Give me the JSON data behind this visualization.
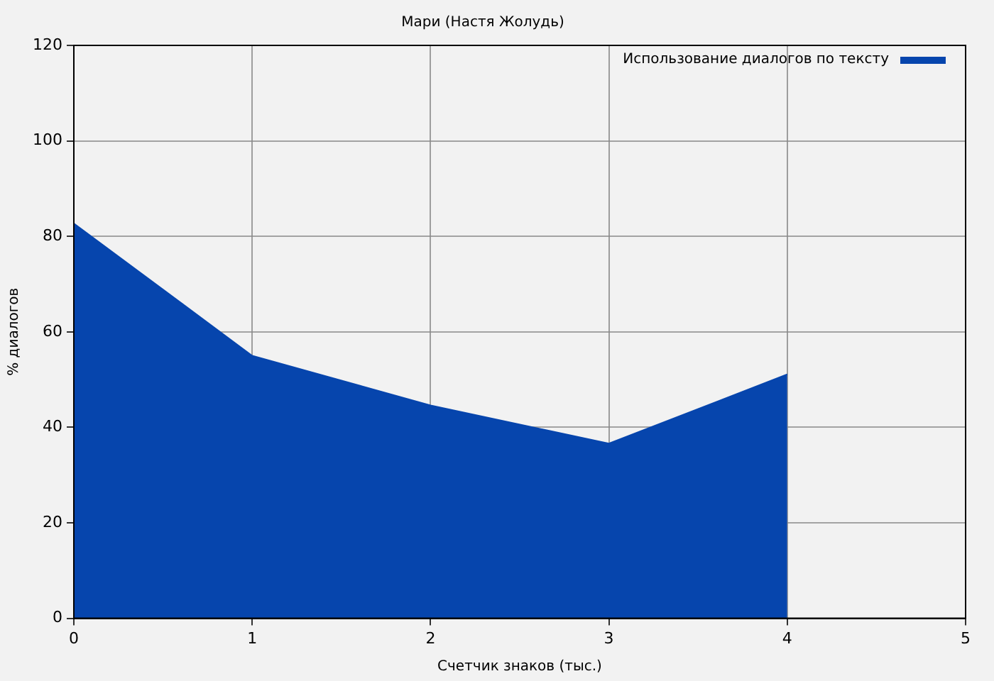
{
  "chart_data": {
    "type": "area",
    "title": "Мари (Настя Жолудь)",
    "xlabel": "Счетчик знаков (тыс.)",
    "ylabel": "% диалогов",
    "x": [
      0,
      1,
      2,
      3,
      4
    ],
    "series": [
      {
        "name": "Использование диалогов по тексту",
        "color": "#0645ad",
        "values": [
          82.7,
          55,
          44.6,
          36.6,
          51.1
        ]
      }
    ],
    "xlim": [
      0,
      5
    ],
    "xticks": [
      0,
      1,
      2,
      3,
      4,
      5
    ],
    "ylim": [
      0,
      120
    ],
    "yticks": [
      0,
      20,
      40,
      60,
      80,
      100,
      120
    ],
    "grid": true,
    "legend": "top right"
  }
}
